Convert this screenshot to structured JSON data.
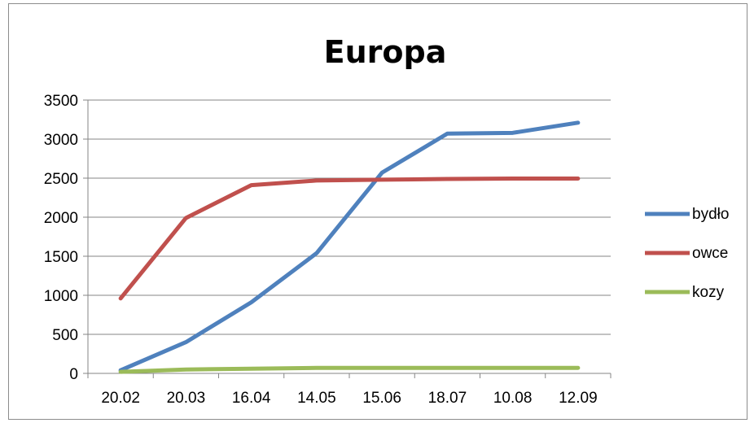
{
  "chart_data": {
    "type": "line",
    "title": "Europa",
    "categories": [
      "20.02",
      "20.03",
      "16.04",
      "14.05",
      "15.06",
      "18.07",
      "10.08",
      "12.09"
    ],
    "ylim": [
      0,
      3500
    ],
    "yticks": [
      0,
      500,
      1000,
      1500,
      2000,
      2500,
      3000,
      3500
    ],
    "grid": true,
    "legend_position": "right",
    "series": [
      {
        "name": "bydło",
        "color": "#4f81bd",
        "values": [
          40,
          400,
          910,
          1540,
          2570,
          3070,
          3080,
          3210
        ]
      },
      {
        "name": "owce",
        "color": "#c0504d",
        "values": [
          960,
          1990,
          2410,
          2470,
          2480,
          2490,
          2495,
          2495
        ]
      },
      {
        "name": "kozy",
        "color": "#9bbb59",
        "values": [
          20,
          50,
          60,
          70,
          70,
          70,
          70,
          70
        ]
      }
    ]
  }
}
